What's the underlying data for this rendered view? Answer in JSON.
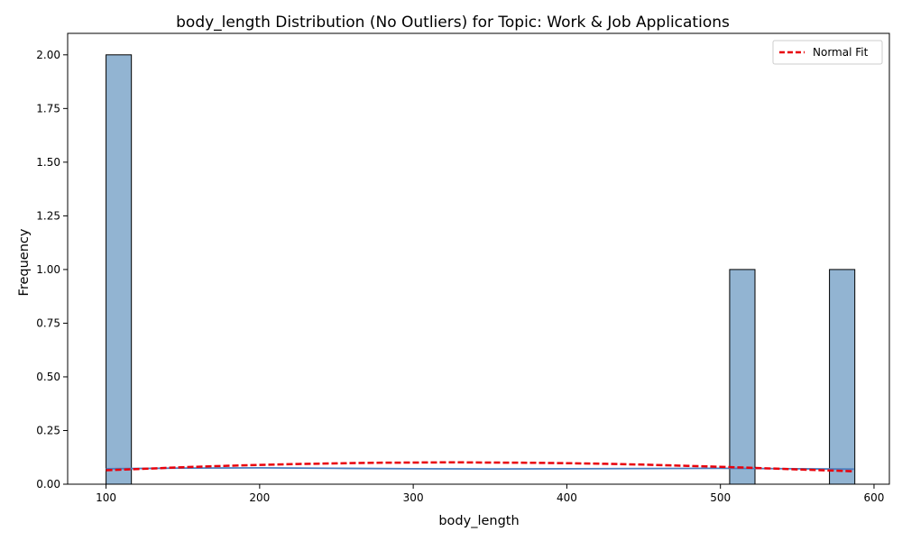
{
  "chart_data": {
    "type": "bar",
    "title": "body_length Distribution (No Outliers) for Topic: Work & Job Applications",
    "xlabel": "body_length",
    "ylabel": "Frequency",
    "xlim": [
      75,
      610
    ],
    "ylim": [
      0,
      2.1
    ],
    "xticks": [
      100,
      200,
      300,
      400,
      500,
      600
    ],
    "yticks": [
      0,
      0.25,
      0.5,
      0.75,
      1.0,
      1.25,
      1.5,
      1.75,
      2.0
    ],
    "xtick_labels": [
      "100",
      "200",
      "300",
      "400",
      "500",
      "600"
    ],
    "ytick_labels": [
      "0.00",
      "0.25",
      "0.50",
      "0.75",
      "1.00",
      "1.25",
      "1.50",
      "1.75",
      "2.00"
    ],
    "grid": false,
    "bars": [
      {
        "x_start": 100,
        "x_end": 116.5,
        "count": 2
      },
      {
        "x_start": 506,
        "x_end": 522.5,
        "count": 1
      },
      {
        "x_start": 571,
        "x_end": 587.5,
        "count": 1
      }
    ],
    "kde": {
      "x": [
        100,
        150,
        200,
        250,
        300,
        350,
        400,
        450,
        500,
        550,
        587
      ],
      "y": [
        0.072,
        0.075,
        0.076,
        0.074,
        0.072,
        0.071,
        0.072,
        0.073,
        0.074,
        0.072,
        0.07
      ]
    },
    "normal_fit": {
      "name": "Normal Fit",
      "x": [
        100,
        125,
        150,
        175,
        200,
        225,
        250,
        275,
        300,
        325,
        350,
        375,
        400,
        425,
        450,
        475,
        500,
        525,
        550,
        575,
        587
      ],
      "y": [
        0.065,
        0.072,
        0.079,
        0.085,
        0.09,
        0.094,
        0.097,
        0.1,
        0.101,
        0.102,
        0.101,
        0.1,
        0.098,
        0.095,
        0.091,
        0.086,
        0.081,
        0.075,
        0.069,
        0.063,
        0.06
      ]
    },
    "legend": {
      "placement": "top-right",
      "entries": [
        "Normal Fit"
      ]
    },
    "colors": {
      "bar_fill": "#92b4d2",
      "bar_edge": "#000000",
      "kde_line": "#4a7fbf",
      "normal_fit_line": "#e8000b"
    }
  }
}
